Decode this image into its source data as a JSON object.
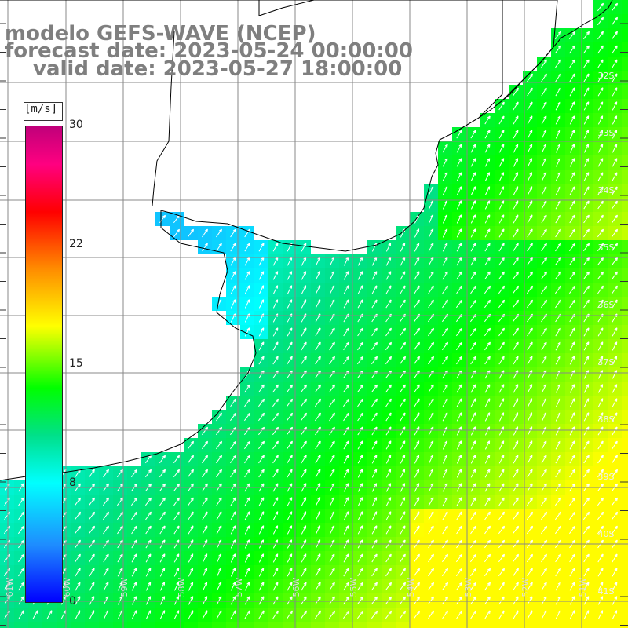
{
  "title": {
    "line1": "modelo GEFS-WAVE (NCEP)",
    "line2": "forecast date: 2023-05-24 00:00:00",
    "line3": "valid date: 2023-05-27 18:00:00"
  },
  "colorbar": {
    "unit": "[m/s]",
    "ticks": [
      "30",
      "22",
      "15",
      "8",
      "0"
    ],
    "tick_values": [
      30,
      22,
      15,
      8,
      0
    ],
    "min": 0,
    "max": 30
  },
  "lat_labels": [
    "32S",
    "33S",
    "34S",
    "35S",
    "36S",
    "37S",
    "38S",
    "39S",
    "40S",
    "41S"
  ],
  "lon_labels": [
    "61W",
    "60W",
    "59W",
    "58W",
    "57W",
    "56W",
    "55W",
    "54W",
    "53W",
    "52W",
    "51W"
  ],
  "colors": {
    "land": "#ffffff",
    "grid": "#888888",
    "coast": "#000000",
    "arrow": "#ffffff",
    "title": "#7f7f7f"
  },
  "map": {
    "field": "wind speed (m/s) with wind direction arrows",
    "wind_direction": "toward north-east"
  }
}
